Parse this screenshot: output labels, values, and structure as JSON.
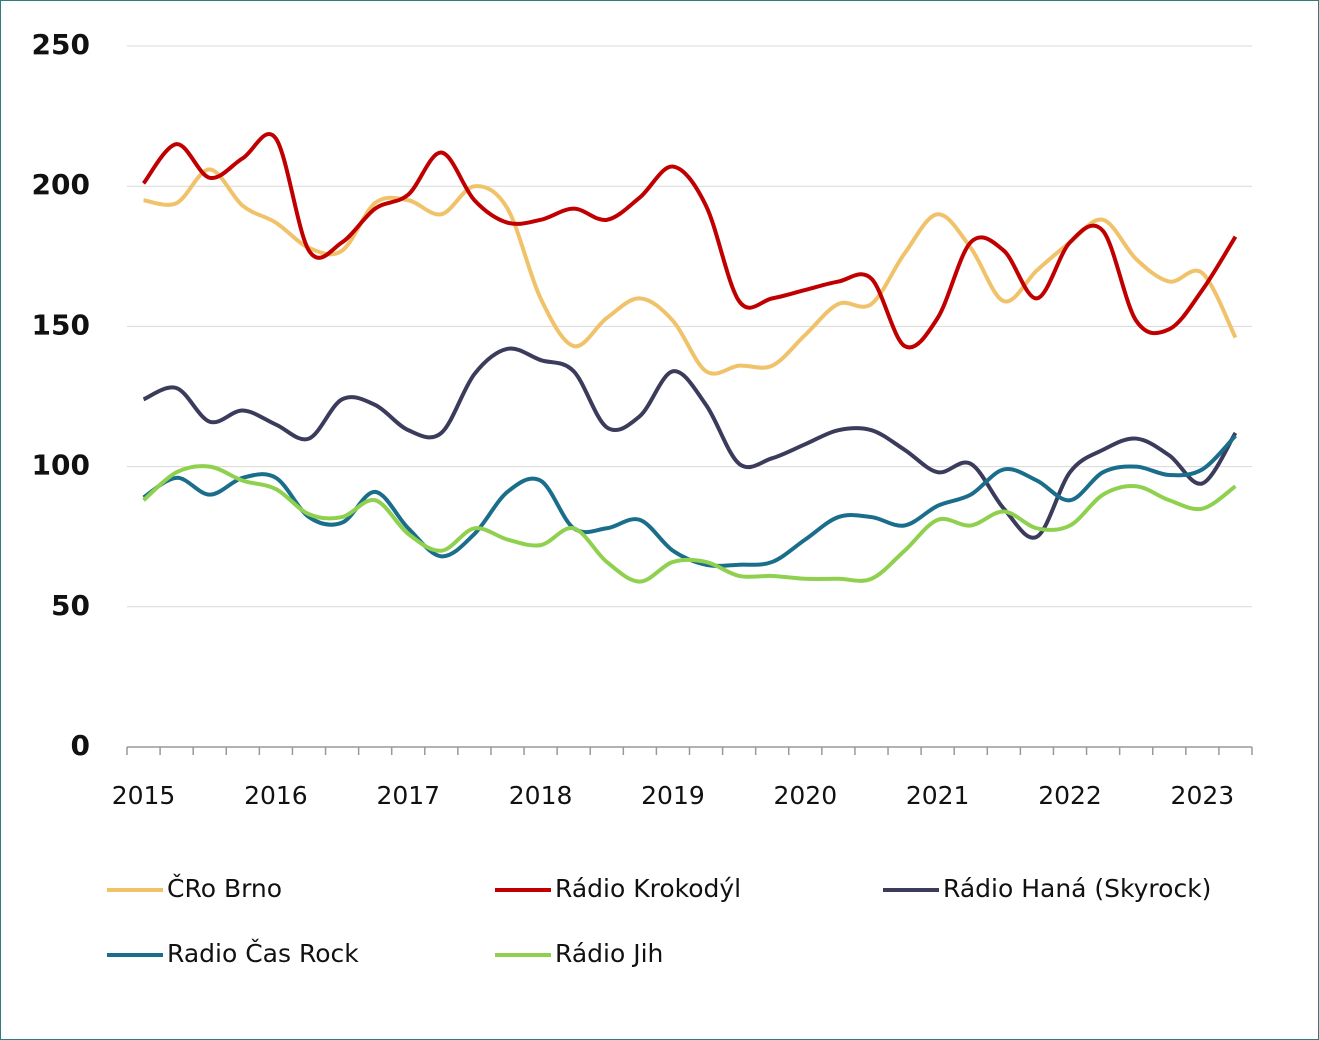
{
  "chart_data": {
    "type": "line",
    "categories": [
      "2015",
      null,
      null,
      null,
      "2016",
      null,
      null,
      null,
      "2017",
      null,
      null,
      null,
      "2018",
      null,
      null,
      null,
      "2019",
      null,
      null,
      null,
      "2020",
      null,
      null,
      null,
      "2021",
      null,
      null,
      null,
      "2022",
      null,
      null,
      null,
      "2023",
      null
    ],
    "series": [
      {
        "name": "ČRo Brno",
        "color": "#f0c26a",
        "values": [
          195,
          194,
          206,
          193,
          187,
          178,
          177,
          194,
          195,
          190,
          200,
          192,
          160,
          143,
          153,
          160,
          152,
          134,
          136,
          136,
          147,
          158,
          158,
          176,
          190,
          178,
          159,
          170,
          180,
          188,
          174,
          166,
          169,
          146
        ]
      },
      {
        "name": "Rádio Krokodýl",
        "color": "#c00000",
        "values": [
          201,
          215,
          203,
          210,
          217,
          177,
          180,
          192,
          197,
          212,
          195,
          187,
          188,
          192,
          188,
          196,
          207,
          193,
          159,
          160,
          163,
          166,
          167,
          143,
          153,
          180,
          177,
          160,
          180,
          184,
          152,
          149,
          163,
          182
        ]
      },
      {
        "name": "Rádio Haná (Skyrock)",
        "color": "#3b3b5c",
        "values": [
          124,
          128,
          116,
          120,
          115,
          110,
          124,
          122,
          113,
          112,
          133,
          142,
          138,
          134,
          114,
          118,
          134,
          122,
          101,
          103,
          108,
          113,
          113,
          106,
          98,
          101,
          85,
          75,
          98,
          106,
          110,
          104,
          94,
          112
        ]
      },
      {
        "name": "Radio Čas Rock",
        "color": "#1a6e8c",
        "values": [
          89,
          96,
          90,
          96,
          96,
          82,
          80,
          91,
          78,
          68,
          76,
          91,
          95,
          78,
          78,
          81,
          70,
          65,
          65,
          66,
          74,
          82,
          82,
          79,
          86,
          90,
          99,
          95,
          88,
          98,
          100,
          97,
          99,
          111
        ]
      },
      {
        "name": "Rádio Jih",
        "color": "#8fd14f",
        "values": [
          88,
          98,
          100,
          95,
          92,
          83,
          82,
          88,
          76,
          70,
          78,
          74,
          72,
          78,
          66,
          59,
          66,
          66,
          61,
          61,
          60,
          60,
          60,
          70,
          81,
          79,
          84,
          78,
          79,
          90,
          93,
          88,
          85,
          93
        ]
      }
    ],
    "ylim": [
      0,
      250
    ],
    "yticks": [
      0,
      50,
      100,
      150,
      200,
      250
    ],
    "grid": true
  }
}
